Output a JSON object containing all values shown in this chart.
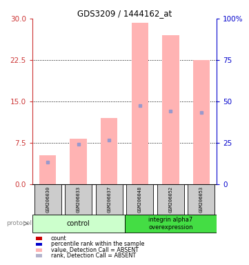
{
  "title": "GDS3209 / 1444162_at",
  "samples": [
    "GSM206030",
    "GSM206033",
    "GSM206037",
    "GSM206048",
    "GSM206052",
    "GSM206053"
  ],
  "pink_bar_heights": [
    5.2,
    8.2,
    12.0,
    29.2,
    27.0,
    22.5
  ],
  "blue_marker_vals": [
    4.0,
    7.2,
    8.0,
    14.2,
    13.2,
    13.0
  ],
  "left_yticks": [
    0,
    7.5,
    15,
    22.5,
    30
  ],
  "right_yticks": [
    0,
    25,
    50,
    75,
    100
  ],
  "right_yticklabels": [
    "0",
    "25",
    "50",
    "75",
    "100%"
  ],
  "ylim_left": [
    0,
    30
  ],
  "ylim_right": [
    0,
    100
  ],
  "pink_color": "#ffb3b3",
  "blue_color": "#9999cc",
  "left_tick_color": "#cc3333",
  "right_tick_color": "#0000cc",
  "group_color_control": "#ccffcc",
  "group_color_integrin": "#44dd44",
  "sample_box_color": "#cccccc",
  "bar_width": 0.55,
  "legend_colors": [
    "#cc0000",
    "#0000cc",
    "#ffb3b3",
    "#b3b3cc"
  ],
  "legend_labels": [
    "count",
    "percentile rank within the sample",
    "value, Detection Call = ABSENT",
    "rank, Detection Call = ABSENT"
  ]
}
